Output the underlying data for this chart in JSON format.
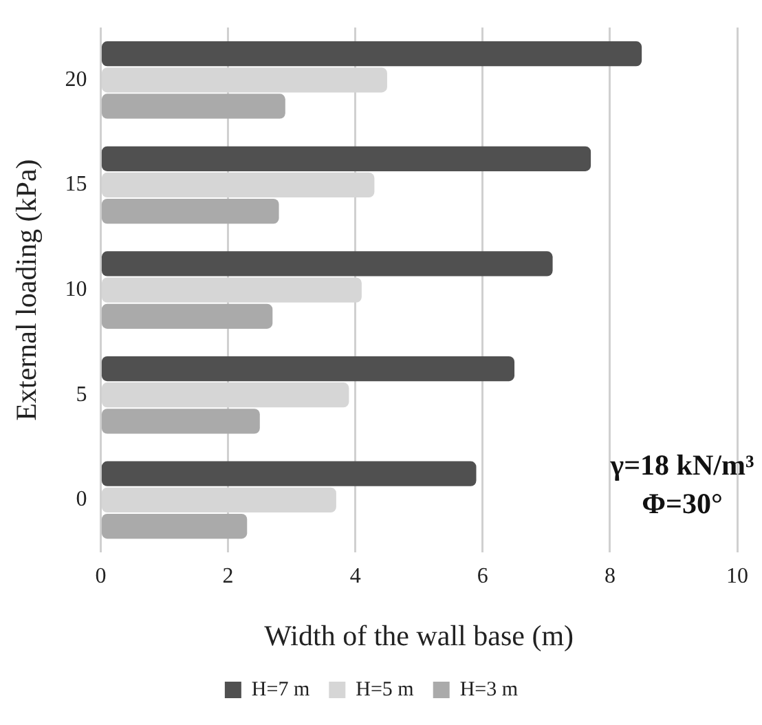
{
  "chart_data": {
    "type": "bar",
    "orientation": "horizontal",
    "xlabel": "Width of the wall base (m)",
    "ylabel": "External loading (kPa)",
    "categories": [
      "20",
      "15",
      "10",
      "5",
      "0"
    ],
    "series": [
      {
        "name": "H=7 m",
        "color": "#505050",
        "values": [
          8.5,
          7.7,
          7.1,
          6.5,
          5.9
        ]
      },
      {
        "name": "H=5 m",
        "color": "#d6d6d6",
        "values": [
          4.5,
          4.3,
          4.1,
          3.9,
          3.7
        ]
      },
      {
        "name": "H=3 m",
        "color": "#aaaaaa",
        "values": [
          2.9,
          2.8,
          2.7,
          2.5,
          2.3
        ]
      }
    ],
    "xlim": [
      0,
      10
    ],
    "xticks": [
      0,
      2,
      4,
      6,
      8,
      10
    ],
    "grid": "x",
    "legend": "bottom",
    "annotations": [
      "γ=18 kN/m³",
      "Φ=30°"
    ]
  }
}
